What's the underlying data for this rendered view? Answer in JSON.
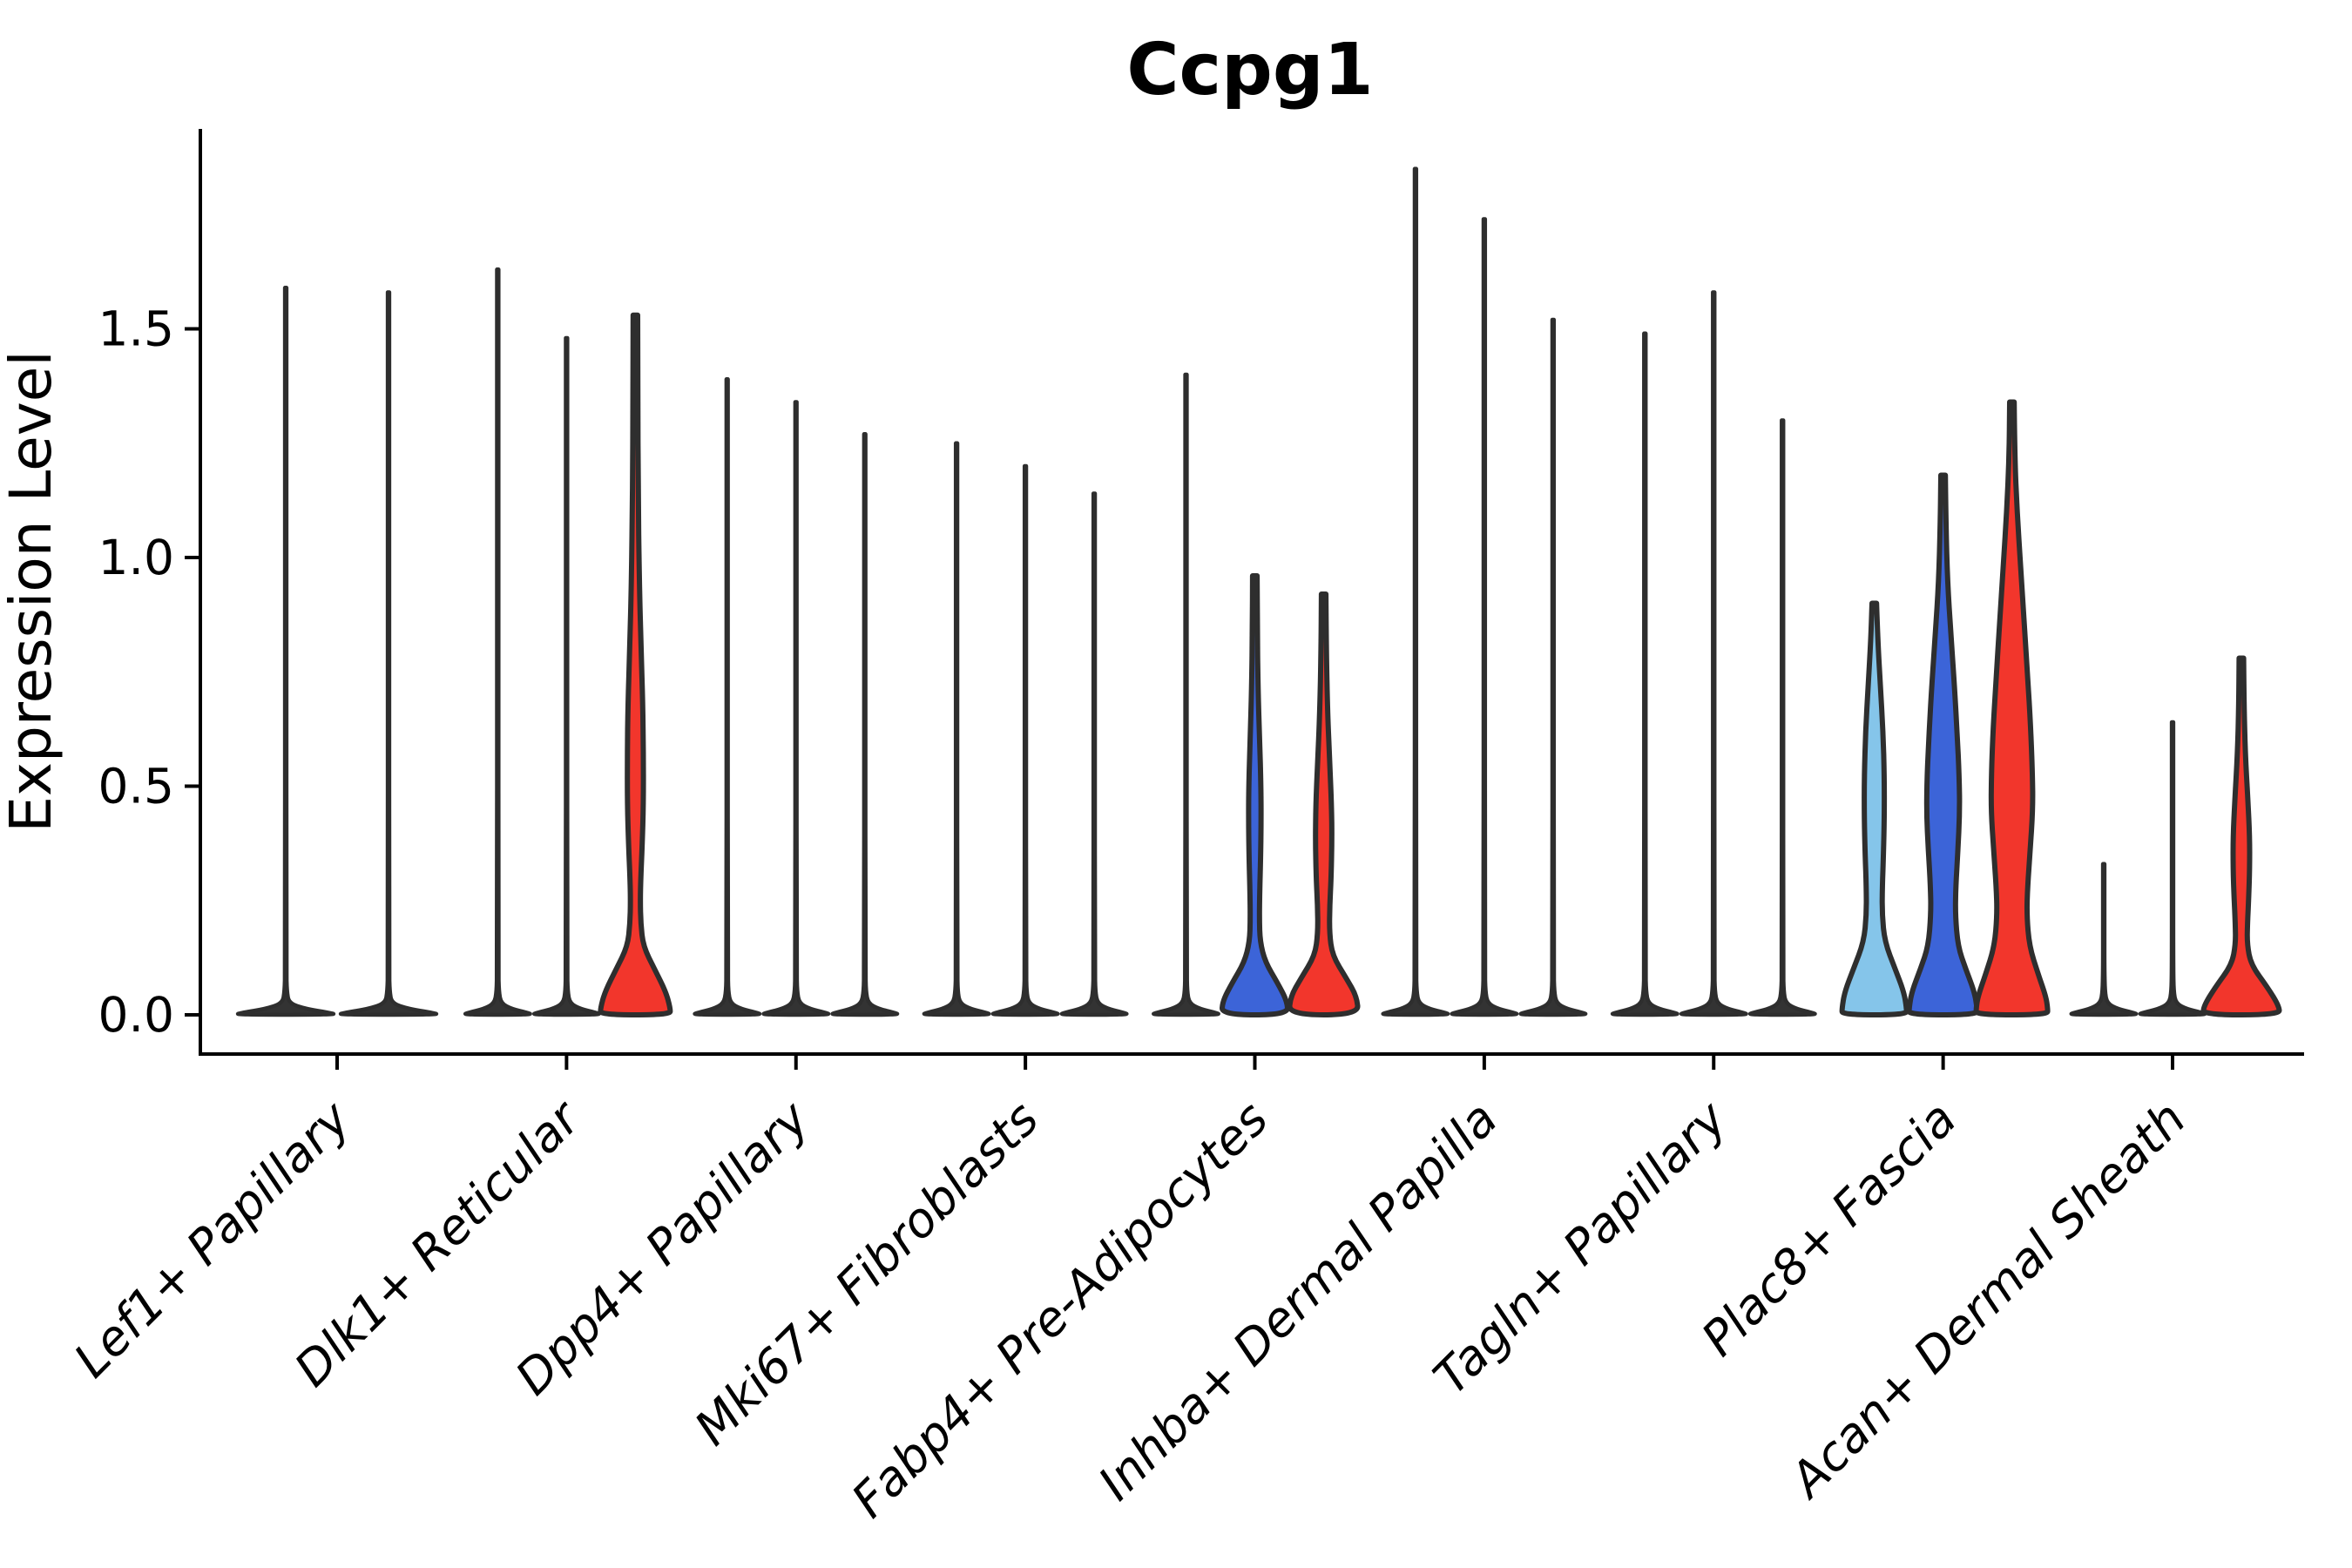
{
  "chart_data": {
    "type": "violin",
    "title": "Ccpg1",
    "ylabel": "Expression Level",
    "xlabel": "",
    "grid": false,
    "legend_position": "none",
    "ytick_labels": [
      "0.0",
      "0.5",
      "1.0",
      "1.5"
    ],
    "ytick_values": [
      0.0,
      0.5,
      1.0,
      1.5
    ],
    "ylim": [
      -0.09,
      1.94
    ],
    "categories": [
      "Lef1+ Papillary",
      "Dlk1+ Reticular",
      "Dpp4+ Papillary",
      "Mki67+ Fibroblasts",
      "Fabp4+ Pre-Adipocytes",
      "Inhba+ Dermal Papilla",
      "Tagln+ Papillary",
      "Plac8+ Fascia",
      "Acan+ Dermal Sheath"
    ],
    "split_colors": {
      "light_blue": "#85C5EA",
      "blue": "#3C64D8",
      "red": "#F2362C"
    },
    "outline_color": "#2E2E2E",
    "collapsed_violin_color": "#333333",
    "axis_color": "#000000",
    "groups": [
      {
        "category": "Lef1+ Papillary",
        "violins": [
          {
            "hue": "unknown",
            "max": 1.59,
            "shape": "spike"
          },
          {
            "hue": "unknown",
            "max": 1.58,
            "shape": "spike"
          }
        ]
      },
      {
        "category": "Dlk1+ Reticular",
        "violins": [
          {
            "hue": "light_blue",
            "max": 1.63,
            "shape": "spike"
          },
          {
            "hue": "blue",
            "max": 1.48,
            "shape": "spike"
          },
          {
            "hue": "red",
            "max": 1.53,
            "shape": "body",
            "profile": [
              [
                1.53,
                2.6
              ],
              [
                1.35,
                2.8
              ],
              [
                1.15,
                3.2
              ],
              [
                0.95,
                4.5
              ],
              [
                0.8,
                6.5
              ],
              [
                0.68,
                8.5
              ],
              [
                0.57,
                9.2
              ],
              [
                0.46,
                9.2
              ],
              [
                0.37,
                7.8
              ],
              [
                0.3,
                6.2
              ],
              [
                0.25,
                5.6
              ],
              [
                0.2,
                6.2
              ],
              [
                0.15,
                9
              ],
              [
                0.1,
                22
              ],
              [
                0.05,
                35
              ],
              [
                0.015,
                40
              ],
              [
                0,
                40
              ]
            ]
          }
        ]
      },
      {
        "category": "Dpp4+ Papillary",
        "violins": [
          {
            "hue": "light_blue",
            "max": 1.39,
            "shape": "spike"
          },
          {
            "hue": "blue",
            "max": 1.34,
            "shape": "spike"
          },
          {
            "hue": "red",
            "max": 1.27,
            "shape": "spike"
          }
        ]
      },
      {
        "category": "Mki67+ Fibroblasts",
        "violins": [
          {
            "hue": "light_blue",
            "max": 1.25,
            "shape": "spike"
          },
          {
            "hue": "blue",
            "max": 1.2,
            "shape": "spike"
          },
          {
            "hue": "red",
            "max": 1.14,
            "shape": "spike"
          }
        ]
      },
      {
        "category": "Fabp4+ Pre-Adipocytes",
        "violins": [
          {
            "hue": "light_blue",
            "max": 1.4,
            "shape": "spike"
          },
          {
            "hue": "blue",
            "max": 0.96,
            "shape": "body",
            "profile": [
              [
                0.96,
                2.6
              ],
              [
                0.85,
                2.8
              ],
              [
                0.72,
                3.6
              ],
              [
                0.6,
                5.5
              ],
              [
                0.5,
                7
              ],
              [
                0.42,
                7.2
              ],
              [
                0.34,
                6.6
              ],
              [
                0.27,
                5.6
              ],
              [
                0.21,
                5.2
              ],
              [
                0.16,
                6
              ],
              [
                0.115,
                12
              ],
              [
                0.07,
                26
              ],
              [
                0.03,
                37
              ],
              [
                0,
                38
              ]
            ]
          },
          {
            "hue": "red",
            "max": 0.92,
            "shape": "body",
            "profile": [
              [
                0.92,
                2.6
              ],
              [
                0.8,
                3
              ],
              [
                0.66,
                4.5
              ],
              [
                0.55,
                7
              ],
              [
                0.46,
                9
              ],
              [
                0.38,
                9.5
              ],
              [
                0.3,
                8.6
              ],
              [
                0.24,
                7
              ],
              [
                0.18,
                6.6
              ],
              [
                0.13,
                10
              ],
              [
                0.08,
                26
              ],
              [
                0.04,
                38
              ],
              [
                0,
                40
              ]
            ]
          }
        ]
      },
      {
        "category": "Inhba+ Dermal Papilla",
        "violins": [
          {
            "hue": "light_blue",
            "max": 1.85,
            "shape": "spike"
          },
          {
            "hue": "blue",
            "max": 1.74,
            "shape": "spike"
          },
          {
            "hue": "red",
            "max": 1.52,
            "shape": "spike"
          }
        ]
      },
      {
        "category": "Tagln+ Papillary",
        "violins": [
          {
            "hue": "light_blue",
            "max": 1.49,
            "shape": "spike"
          },
          {
            "hue": "blue",
            "max": 1.58,
            "shape": "spike"
          },
          {
            "hue": "red",
            "max": 1.3,
            "shape": "spike"
          }
        ]
      },
      {
        "category": "Plac8+ Fascia",
        "violins": [
          {
            "hue": "light_blue",
            "max": 0.9,
            "shape": "body",
            "profile": [
              [
                0.9,
                2.6
              ],
              [
                0.82,
                4
              ],
              [
                0.72,
                7
              ],
              [
                0.62,
                10
              ],
              [
                0.52,
                11.5
              ],
              [
                0.43,
                11.5
              ],
              [
                0.35,
                10.5
              ],
              [
                0.28,
                9.2
              ],
              [
                0.22,
                9
              ],
              [
                0.16,
                12
              ],
              [
                0.1,
                24
              ],
              [
                0.05,
                34
              ],
              [
                0.015,
                37
              ],
              [
                0,
                37
              ]
            ]
          },
          {
            "hue": "blue",
            "max": 1.18,
            "shape": "body",
            "profile": [
              [
                1.18,
                2.6
              ],
              [
                1.08,
                3.2
              ],
              [
                0.95,
                5
              ],
              [
                0.83,
                9
              ],
              [
                0.72,
                13
              ],
              [
                0.62,
                16
              ],
              [
                0.52,
                18.5
              ],
              [
                0.44,
                19
              ],
              [
                0.36,
                17
              ],
              [
                0.28,
                14.5
              ],
              [
                0.22,
                14
              ],
              [
                0.15,
                17
              ],
              [
                0.1,
                26
              ],
              [
                0.05,
                36
              ],
              [
                0.015,
                39
              ],
              [
                0,
                39
              ]
            ]
          },
          {
            "hue": "red",
            "max": 1.34,
            "shape": "body",
            "profile": [
              [
                1.34,
                2.6
              ],
              [
                1.22,
                3.2
              ],
              [
                1.1,
                6
              ],
              [
                0.98,
                10
              ],
              [
                0.86,
                14
              ],
              [
                0.74,
                18
              ],
              [
                0.63,
                21.5
              ],
              [
                0.53,
                23.5
              ],
              [
                0.45,
                24
              ],
              [
                0.36,
                21
              ],
              [
                0.28,
                18
              ],
              [
                0.22,
                17
              ],
              [
                0.15,
                20
              ],
              [
                0.09,
                30
              ],
              [
                0.04,
                39
              ],
              [
                0.015,
                41
              ],
              [
                0,
                41
              ]
            ]
          }
        ]
      },
      {
        "category": "Acan+ Dermal Sheath",
        "violins": [
          {
            "hue": "light_blue",
            "max": 0.33,
            "shape": "spike"
          },
          {
            "hue": "blue",
            "max": 0.64,
            "shape": "spike"
          },
          {
            "hue": "red",
            "max": 0.78,
            "shape": "body",
            "profile": [
              [
                0.78,
                2.6
              ],
              [
                0.68,
                3
              ],
              [
                0.57,
                4.5
              ],
              [
                0.47,
                7.5
              ],
              [
                0.39,
                9.5
              ],
              [
                0.32,
                9.5
              ],
              [
                0.26,
                8.5
              ],
              [
                0.2,
                7
              ],
              [
                0.155,
                6.6
              ],
              [
                0.11,
                11
              ],
              [
                0.06,
                30
              ],
              [
                0.02,
                43
              ],
              [
                0,
                44
              ]
            ]
          }
        ]
      }
    ]
  }
}
